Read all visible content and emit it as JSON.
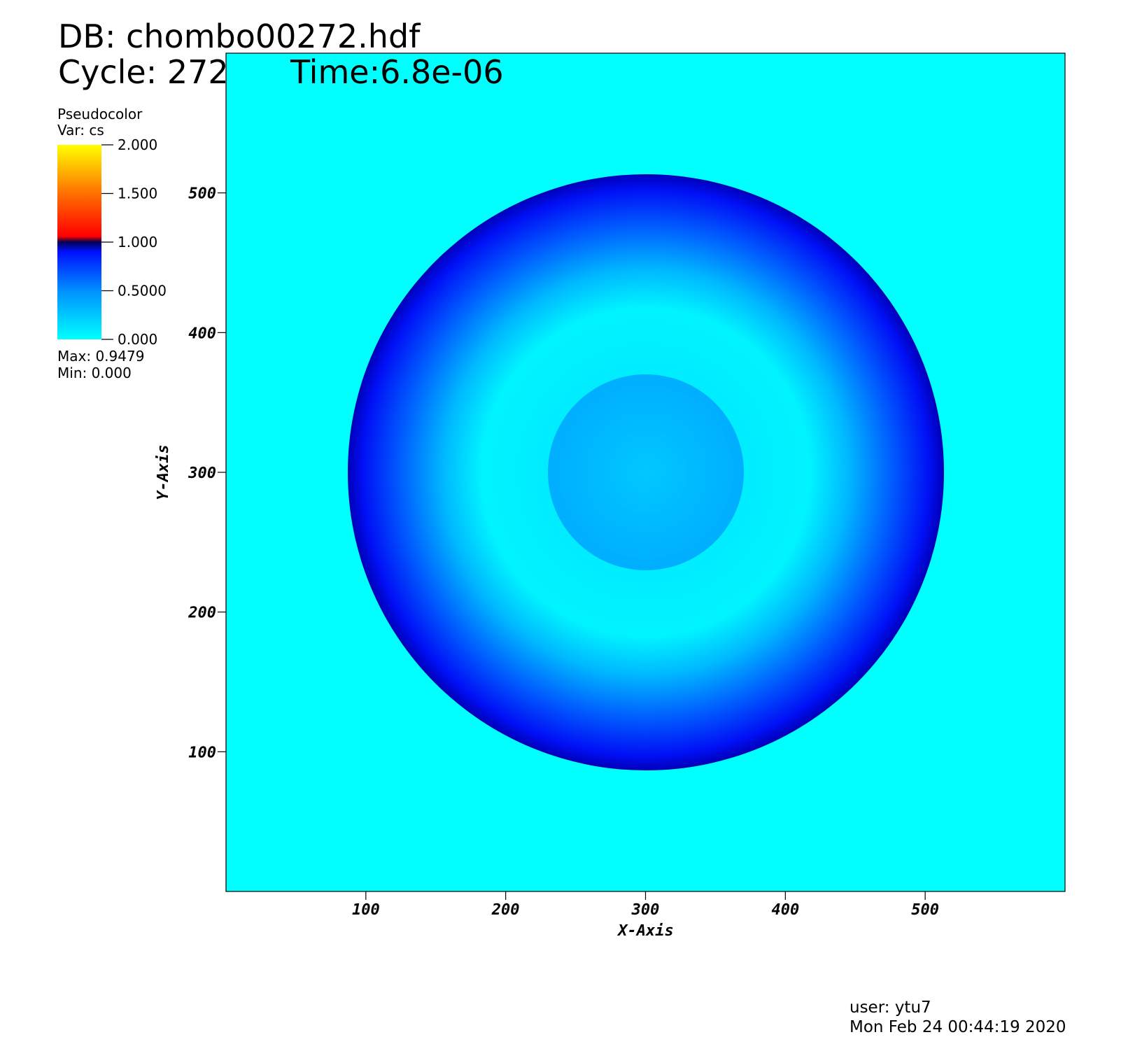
{
  "chart_data": {
    "type": "pseudocolor",
    "title": "DB: chombo00272.hdf",
    "subtitle": "Cycle: 272",
    "time": "Time:6.8e-06",
    "xlabel": "X-Axis",
    "ylabel": "Y-Axis",
    "xlim": [
      0,
      600
    ],
    "xticks": [
      100,
      200,
      300,
      400,
      500
    ],
    "ylim": [
      0,
      600
    ],
    "yticks": [
      100,
      200,
      300,
      400,
      500
    ],
    "legend": {
      "title": "Pseudocolor",
      "variable": "Var: cs",
      "clim": [
        0,
        2
      ],
      "ticks": [
        {
          "value": 2,
          "label": "2.000"
        },
        {
          "value": 1.5,
          "label": "1.500"
        },
        {
          "value": 1,
          "label": "1.000"
        },
        {
          "value": 0.5,
          "label": "0.5000"
        },
        {
          "value": 0,
          "label": "0.000"
        }
      ],
      "stats": [
        "Max:  0.9479",
        "Min:  0.000"
      ]
    },
    "footer": [
      "user: ytu7",
      "Mon Feb 24 00:44:19 2020"
    ]
  }
}
